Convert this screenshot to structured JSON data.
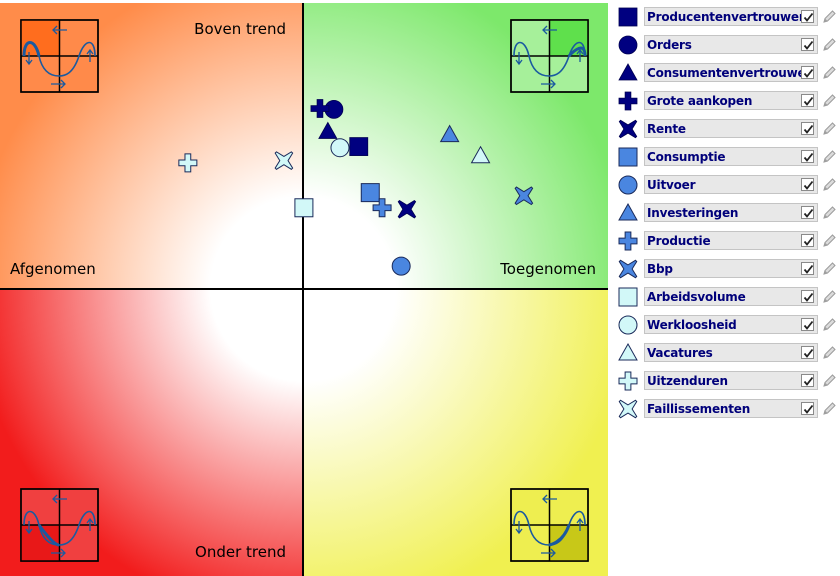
{
  "chart_data": {
    "type": "scatter",
    "title": "",
    "quadrant_labels": {
      "top": "Boven trend",
      "bottom": "Onder trend",
      "left": "Afgenomen",
      "right": "Toegenomen"
    },
    "xlim": [
      -1,
      1
    ],
    "ylim": [
      -1,
      1
    ],
    "grid": false,
    "legend_position": "right",
    "colors": {
      "navy": "#000080",
      "blue": "#4a86e0",
      "light": "#d2f8f8",
      "quadrant_top_left": "#ff8c4a",
      "quadrant_top_right": "#7de86b",
      "quadrant_bottom_left": "#f21c1c",
      "quadrant_bottom_right": "#f0f050"
    },
    "series": [
      {
        "name": "Producentenvertrouwen",
        "shape": "square",
        "fill": "navy",
        "x": 0.184,
        "y": 0.498,
        "checked": true
      },
      {
        "name": "Orders",
        "shape": "circle",
        "fill": "navy",
        "x": 0.102,
        "y": 0.628,
        "checked": true
      },
      {
        "name": "Consumentenvertrouwen",
        "shape": "triangle",
        "fill": "navy",
        "x": 0.082,
        "y": 0.551,
        "checked": true
      },
      {
        "name": "Grote aankopen",
        "shape": "plus",
        "fill": "navy",
        "x": 0.056,
        "y": 0.631,
        "checked": true
      },
      {
        "name": "Rente",
        "shape": "cross",
        "fill": "navy",
        "x": 0.343,
        "y": 0.279,
        "checked": true
      },
      {
        "name": "Consumptie",
        "shape": "square",
        "fill": "blue",
        "x": 0.222,
        "y": 0.337,
        "checked": true
      },
      {
        "name": "Uitvoer",
        "shape": "circle",
        "fill": "blue",
        "x": 0.324,
        "y": 0.08,
        "checked": true
      },
      {
        "name": "Investeringen",
        "shape": "triangle",
        "fill": "blue",
        "x": 0.484,
        "y": 0.54,
        "checked": true
      },
      {
        "name": "Productie",
        "shape": "plus",
        "fill": "blue",
        "x": 0.261,
        "y": 0.284,
        "checked": true
      },
      {
        "name": "Bbp",
        "shape": "cross",
        "fill": "blue",
        "x": 0.729,
        "y": 0.326,
        "checked": true
      },
      {
        "name": "Arbeidsvolume",
        "shape": "square",
        "fill": "light",
        "x": 0.003,
        "y": 0.284,
        "checked": true
      },
      {
        "name": "Werkloosheid",
        "shape": "circle",
        "fill": "light",
        "x": 0.122,
        "y": 0.494,
        "checked": true
      },
      {
        "name": "Vacatures",
        "shape": "triangle",
        "fill": "light",
        "x": 0.586,
        "y": 0.466,
        "checked": true
      },
      {
        "name": "Uitzenduren",
        "shape": "plus",
        "fill": "light",
        "x": -0.38,
        "y": 0.441,
        "checked": true
      },
      {
        "name": "Faillissementen",
        "shape": "cross",
        "fill": "light",
        "x": -0.063,
        "y": 0.449,
        "checked": true
      }
    ]
  }
}
